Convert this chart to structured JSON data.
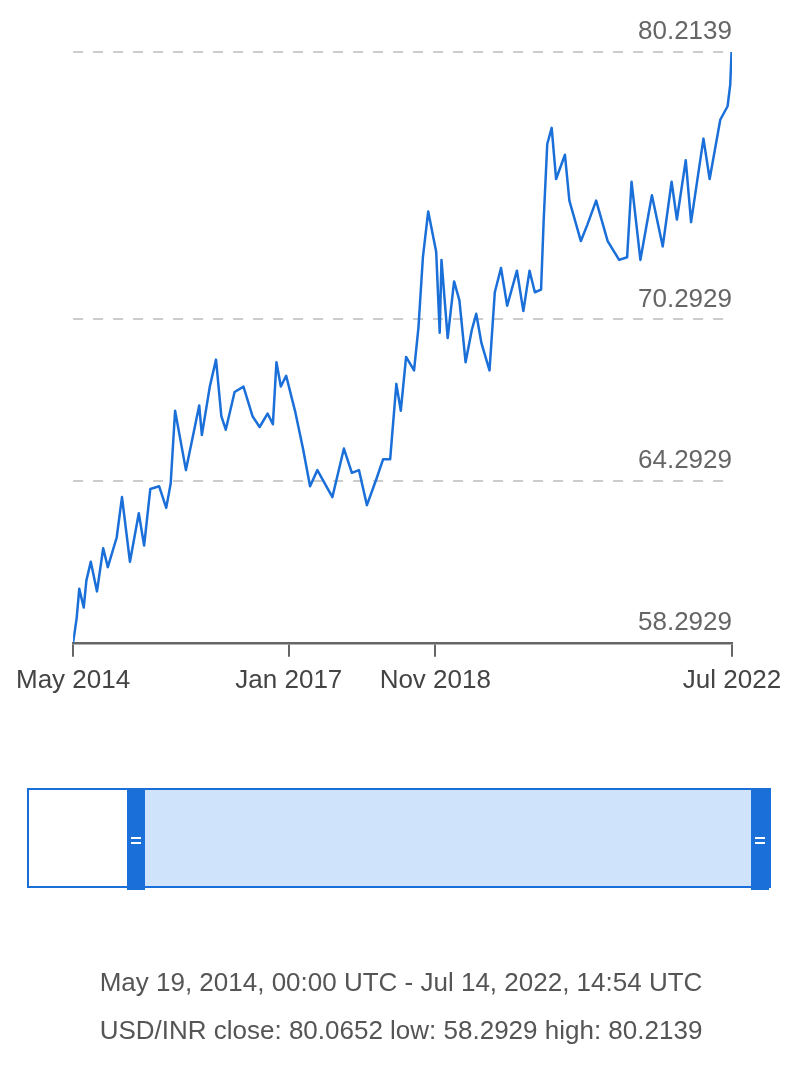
{
  "chart_data": {
    "type": "line",
    "x": [
      "2014-05-19",
      "2014-06-04",
      "2014-06-16",
      "2014-07-06",
      "2014-07-18",
      "2014-08-07",
      "2014-09-04",
      "2014-10-02",
      "2014-10-23",
      "2014-12-02",
      "2014-12-26",
      "2015-01-31",
      "2015-03-12",
      "2015-04-05",
      "2015-05-03",
      "2015-06-12",
      "2015-07-14",
      "2015-08-03",
      "2015-08-23",
      "2015-10-11",
      "2015-12-10",
      "2015-12-22",
      "2016-01-27",
      "2016-02-24",
      "2016-03-19",
      "2016-04-08",
      "2016-05-18",
      "2016-06-27",
      "2016-08-07",
      "2016-09-08",
      "2016-10-14",
      "2016-11-07",
      "2016-11-23",
      "2016-12-13",
      "2017-01-06",
      "2017-02-15",
      "2017-03-23",
      "2017-04-24",
      "2017-05-27",
      "2017-08-03",
      "2017-09-24",
      "2017-10-30",
      "2017-12-01",
      "2018-01-06",
      "2018-02-19",
      "2018-03-20",
      "2018-04-21",
      "2018-05-19",
      "2018-06-08",
      "2018-07-02",
      "2018-08-07",
      "2018-08-27",
      "2018-09-16",
      "2018-10-10",
      "2018-11-15",
      "2018-12-01",
      "2018-12-09",
      "2019-01-06",
      "2019-02-04",
      "2019-02-28",
      "2019-03-28",
      "2019-04-25",
      "2019-05-15",
      "2019-06-08",
      "2019-07-14",
      "2019-08-07",
      "2019-09-04",
      "2019-10-02",
      "2019-11-15",
      "2019-12-14",
      "2020-01-11",
      "2020-02-04",
      "2020-03-03",
      "2020-03-15",
      "2020-03-31",
      "2020-04-20",
      "2020-05-10",
      "2020-06-19",
      "2020-07-09",
      "2020-08-30",
      "2020-09-28",
      "2020-11-07",
      "2020-12-29",
      "2021-02-19",
      "2021-03-27",
      "2021-04-16",
      "2021-05-26",
      "2021-07-17",
      "2021-09-04",
      "2021-10-14",
      "2021-11-07",
      "2021-12-17",
      "2022-01-10",
      "2022-03-07",
      "2022-04-04",
      "2022-05-22",
      "2022-06-24",
      "2022-07-06",
      "2022-07-12",
      "2022-07-14"
    ],
    "series": [
      {
        "color": "#1a6fd8",
        "values": [
          58.2929,
          59.2,
          60.3,
          59.6,
          60.6,
          61.3,
          60.2,
          61.8,
          61.1,
          62.2,
          63.7,
          61.3,
          63.1,
          61.9,
          64.0,
          64.1,
          63.3,
          64.2,
          66.9,
          64.7,
          67.1,
          66.0,
          67.8,
          68.8,
          66.7,
          66.2,
          67.6,
          67.8,
          66.7,
          66.3,
          66.8,
          66.4,
          68.7,
          67.8,
          68.2,
          66.9,
          65.5,
          64.1,
          64.7,
          63.7,
          65.5,
          64.6,
          64.7,
          63.4,
          64.4,
          65.1,
          65.1,
          67.9,
          66.9,
          68.9,
          68.4,
          70.0,
          72.6,
          74.3,
          72.8,
          69.8,
          72.5,
          69.6,
          71.7,
          71.0,
          68.7,
          69.9,
          70.5,
          69.4,
          68.4,
          71.3,
          72.2,
          70.8,
          72.1,
          70.6,
          72.1,
          71.3,
          71.4,
          74.0,
          76.8,
          77.4,
          75.5,
          76.4,
          74.7,
          73.2,
          73.8,
          74.7,
          73.2,
          72.5,
          72.6,
          75.4,
          72.5,
          74.9,
          73.0,
          75.4,
          74.0,
          76.2,
          73.9,
          77.0,
          75.5,
          77.7,
          78.2,
          79.0,
          80.2139,
          80.0652
        ]
      }
    ],
    "xlim": [
      "2014-05-19",
      "2022-07-14"
    ],
    "xticks": [
      {
        "value": "2014-05-19",
        "label": "May 2014"
      },
      {
        "value": "2017-01-18",
        "label": "Jan 2017"
      },
      {
        "value": "2018-11-11",
        "label": "Nov 2018"
      },
      {
        "value": "2022-07-14",
        "label": "Jul 2022"
      }
    ],
    "ylim": [
      58.2929,
      80.2139
    ],
    "yticks": [
      58.2929,
      64.2929,
      70.2929,
      80.2139
    ],
    "grid": "y",
    "marker": "none",
    "line_style": "solid",
    "annotations": [
      "May 19, 2014, 00:00 UTC - Jul 14, 2022, 14:54 UTC",
      "USD/INR close: 80.0652 low: 58.2929 high: 80.2139"
    ]
  }
}
